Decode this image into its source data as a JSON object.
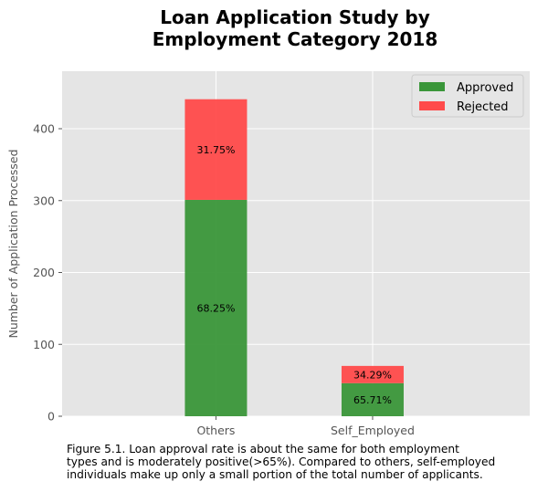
{
  "chart_data": {
    "type": "bar",
    "stacked": true,
    "title": [
      "Loan Application Study by",
      "Employment Category 2018"
    ],
    "xlabel": "",
    "ylabel": "Number of Application Processed",
    "categories": [
      "Others",
      "Self_Employed"
    ],
    "series": [
      {
        "name": "Approved",
        "color": "#3a9639",
        "values": [
          301,
          46
        ],
        "labels": [
          "68.25%",
          "65.71%"
        ]
      },
      {
        "name": "Rejected",
        "color": "#ff4a4a",
        "values": [
          140,
          24
        ],
        "labels": [
          "31.75%",
          "34.29%"
        ]
      }
    ],
    "ylim": [
      0,
      480
    ],
    "yticks": [
      0,
      100,
      200,
      300,
      400
    ],
    "grid": true,
    "legend_position": "top-right",
    "style": {
      "plot_background": "#e5e5e5",
      "grid_color": "#ffffff",
      "tick_color": "#555555"
    }
  },
  "caption": {
    "lines": [
      "Figure 5.1. Loan approval rate is about the same for both employment",
      "types and is moderately positive(>65%). Compared to others, self-employed",
      "individuals make up only a small portion of the total number of applicants."
    ]
  }
}
